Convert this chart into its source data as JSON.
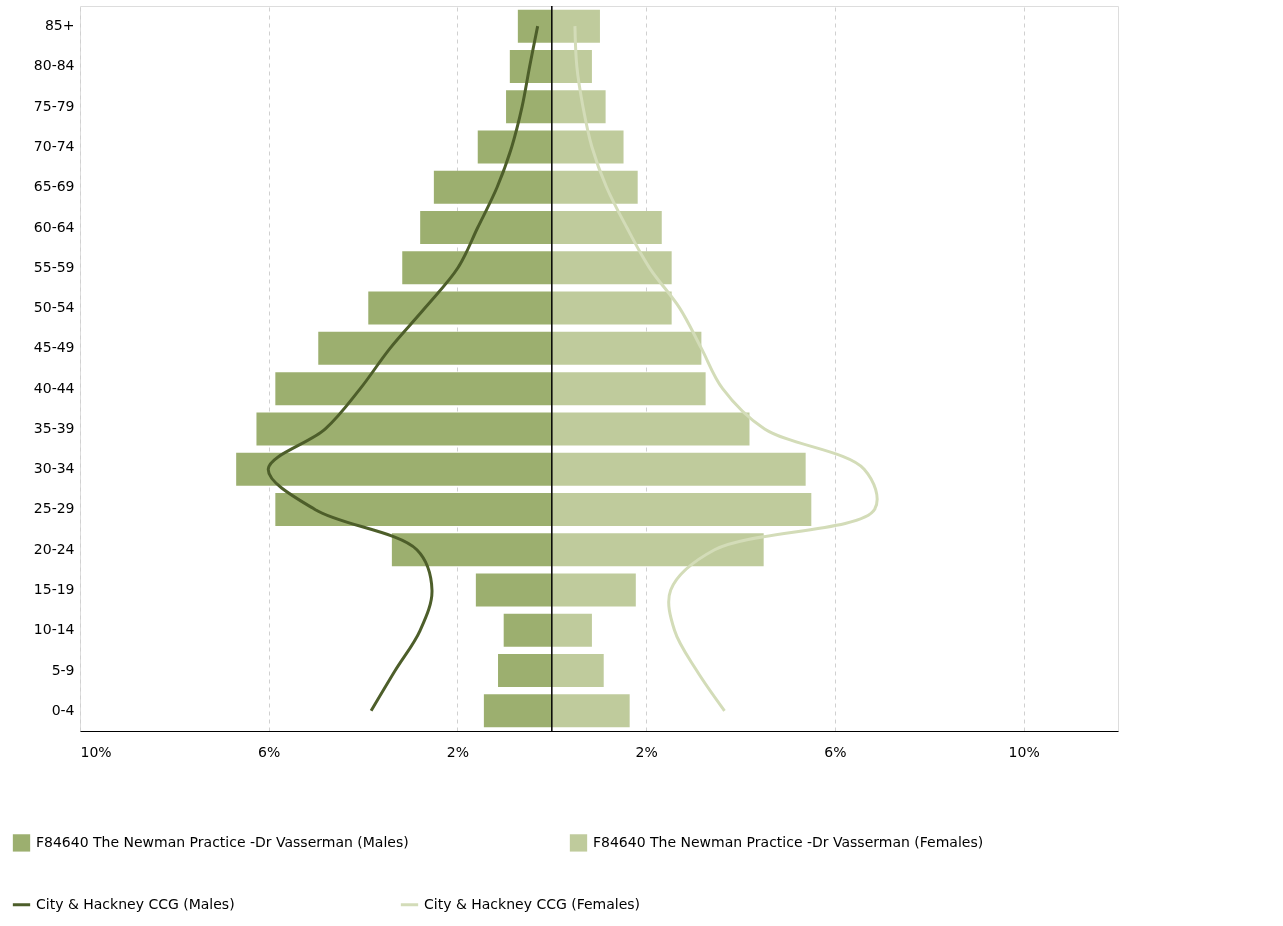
{
  "chart_data": {
    "type": "bar",
    "orientation": "horizontal",
    "stacked": true,
    "categories": [
      "85+",
      "80-84",
      "75-79",
      "70-74",
      "65-69",
      "60-64",
      "55-59",
      "50-54",
      "45-49",
      "40-44",
      "35-39",
      "30-34",
      "25-29",
      "20-24",
      "15-19",
      "10-14",
      "5-9",
      "0-4"
    ],
    "series": [
      {
        "name": "F84640 The Newman Practice -Dr Vasserman   (Males)",
        "color": "#9caf6f",
        "values": [
          -0.72,
          -0.89,
          -0.97,
          -1.57,
          -2.5,
          -2.79,
          -3.17,
          -3.89,
          -4.95,
          -5.86,
          -6.26,
          -6.69,
          -5.86,
          -3.39,
          -1.61,
          -1.02,
          -1.14,
          -1.44
        ]
      },
      {
        "name": "F84640 The Newman Practice -Dr Vasserman   (Females)",
        "color": "#bfcb9c",
        "values": [
          1.02,
          0.85,
          1.14,
          1.52,
          1.82,
          2.33,
          2.54,
          2.54,
          3.17,
          3.26,
          4.19,
          5.38,
          5.5,
          4.49,
          1.78,
          0.85,
          1.1,
          1.65
        ]
      },
      {
        "name": "City & Hackney CCG   (Males)",
        "type": "line",
        "color": "#4d5e2a",
        "values": [
          -0.3,
          -0.47,
          -0.63,
          -0.85,
          -1.16,
          -1.57,
          -1.99,
          -2.69,
          -3.43,
          -4.06,
          -4.8,
          -6.01,
          -5.02,
          -2.86,
          -2.54,
          -2.79,
          -3.32,
          -3.83
        ]
      },
      {
        "name": "City & Hackney CCG   (Females)",
        "type": "line",
        "color": "#d3dcb8",
        "values": [
          0.49,
          0.53,
          0.66,
          0.85,
          1.16,
          1.59,
          2.07,
          2.71,
          3.17,
          3.62,
          4.51,
          6.62,
          6.84,
          3.45,
          2.52,
          2.6,
          3.07,
          3.66
        ]
      }
    ],
    "xlim": [
      -10,
      12
    ],
    "xticks": [
      {
        "value": -10,
        "label": "10%"
      },
      {
        "value": -6,
        "label": "6%"
      },
      {
        "value": -2,
        "label": "2%"
      },
      {
        "value": 2,
        "label": "2%"
      },
      {
        "value": 6,
        "label": "6%"
      },
      {
        "value": 10,
        "label": "10%"
      }
    ],
    "ref_lines": [
      {
        "axis": "x",
        "value": 0,
        "color": "#000000"
      }
    ],
    "grid": "x",
    "legend": "bottom"
  }
}
